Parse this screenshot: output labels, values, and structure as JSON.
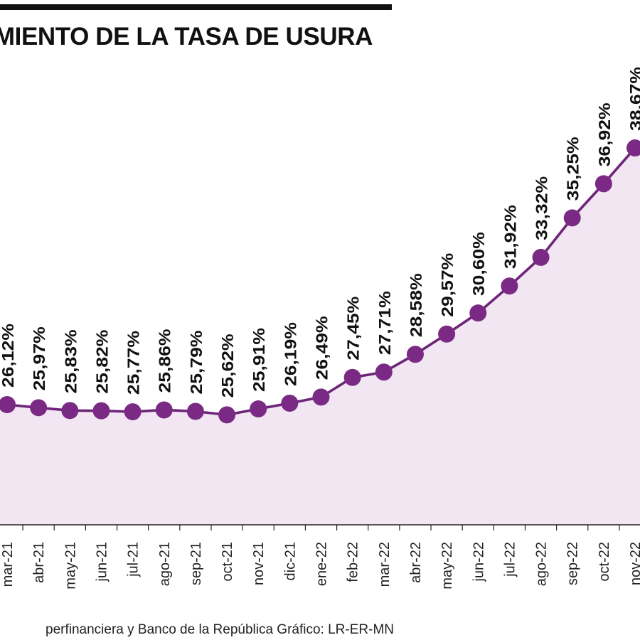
{
  "title": "MIENTO DE LA TASA DE USURA",
  "source": "perfinanciera y Banco de la República   Gráfico: LR-ER-MN",
  "colors": {
    "line": "#6e2479",
    "marker": "#7a2a84",
    "area": "#f1e6f2",
    "axis": "#222222",
    "text": "#111111"
  },
  "chart_data": {
    "type": "area",
    "categories": [
      "mar-21",
      "abr-21",
      "may-21",
      "jun-21",
      "jul-21",
      "ago-21",
      "sep-21",
      "oct-21",
      "nov-21",
      "dic-21",
      "ene-22",
      "feb-22",
      "mar-22",
      "abr-22",
      "may-22",
      "jun-22",
      "jul-22",
      "ago-22",
      "sep-22",
      "oct-22",
      "nov-22"
    ],
    "value_labels": [
      "26,12%",
      "25,97%",
      "25,83%",
      "25,82%",
      "25,77%",
      "25,86%",
      "25,79%",
      "25,62%",
      "25,91%",
      "26,19%",
      "26,49%",
      "27,45%",
      "27,71%",
      "28,58%",
      "29,57%",
      "30,60%",
      "31,92%",
      "33,32%",
      "35,25%",
      "36,92%",
      "38,67%"
    ],
    "series": [
      {
        "values": [
          26.12,
          25.97,
          25.83,
          25.82,
          25.77,
          25.86,
          25.79,
          25.62,
          25.91,
          26.19,
          26.49,
          27.45,
          27.71,
          28.58,
          29.57,
          30.6,
          31.92,
          33.32,
          35.25,
          36.92,
          38.67
        ]
      }
    ],
    "markers": true,
    "data_labels": true,
    "grid": false,
    "legend": "none"
  }
}
